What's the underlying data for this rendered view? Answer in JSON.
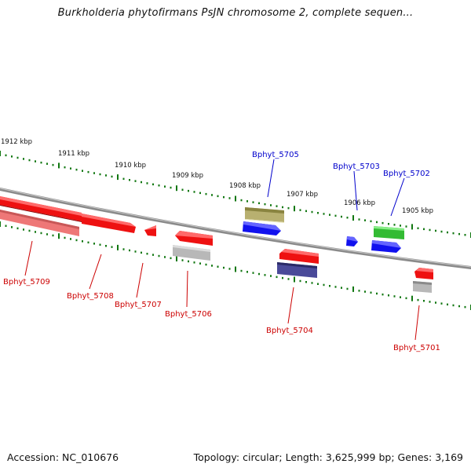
{
  "title": "Burkholderia phytofirmans PsJN chromosome 2, complete sequen...",
  "footer": {
    "accession": "Accession: NC_010676",
    "topology": "Topology: circular; Length: 3,625,999 bp; Genes: 3,169"
  },
  "scale_labels": [
    "1912 kbp",
    "1911 kbp",
    "1910 kbp",
    "1909 kbp",
    "1908 kbp",
    "1907 kbp",
    "1906 kbp",
    "1905 kbp"
  ],
  "gene_labels": {
    "above": [
      "Bphyt_5705",
      "Bphyt_5703",
      "Bphyt_5702"
    ],
    "below": [
      "Bphyt_5709",
      "Bphyt_5708",
      "Bphyt_5707",
      "Bphyt_5706",
      "Bphyt_5704",
      "Bphyt_5701"
    ]
  },
  "colors": {
    "label_above": "#0000cc",
    "label_below": "#cc0000",
    "tick": "#117711",
    "backbone": "#8a8a8a",
    "red": "#ee1111",
    "pink": "#ee7777",
    "grey": "#b8b8b8",
    "blue": "#1111ee",
    "olive": "#b8b070",
    "green": "#33bb33",
    "navy": "#4a4a99"
  }
}
